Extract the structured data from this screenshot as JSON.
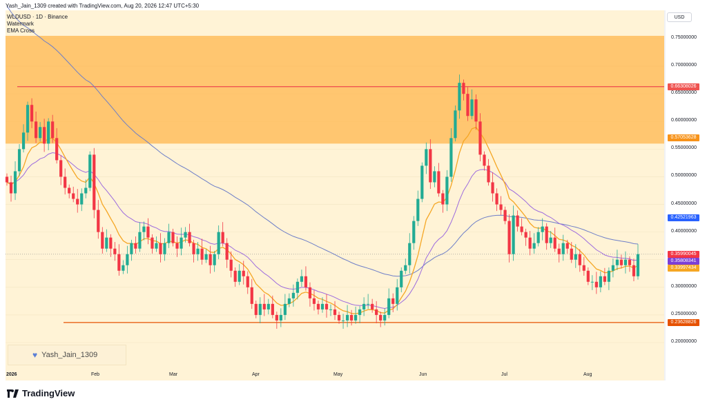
{
  "header": "Yash_Jain_1309 created with TradingView.com, Aug 20, 2026 12:47 UTC+5:30",
  "legend": [
    "WLDUSD · 1D · Binance",
    "Watermark",
    "EMA Cross"
  ],
  "watermark": {
    "text": "Yash_Jain_1309",
    "icon": "heart-icon",
    "icon_color": "#5b7fd6"
  },
  "currency_button": "USD",
  "footer_logo": "TradingView",
  "colors": {
    "up": "#22ab94",
    "down": "#f23645",
    "ema_fast": "#f5a623",
    "ema_slow": "#9c6ade",
    "ema_long": "#6d7ec8",
    "zone": "#ffb74d",
    "background": "#fff3d6",
    "resistance": "#ef5350",
    "support": "#e65100"
  },
  "price_labels": [
    {
      "text": "0.66308026",
      "color": "#ef5350",
      "value": 0.66308026
    },
    {
      "text": "0.57053628",
      "color": "#f7931a",
      "value": 0.57053628
    },
    {
      "text": "0.42521963",
      "color": "#2962ff",
      "value": 0.42521963
    },
    {
      "text": "0.35990045",
      "color": "#f23645",
      "value": 0.35990045
    },
    {
      "text": "0.35808341",
      "color": "#7b3fd6",
      "value": 0.35808341
    },
    {
      "text": "0.33997434",
      "color": "#f5a623",
      "value": 0.33997434
    },
    {
      "text": "0.23628826",
      "color": "#e65100",
      "value": 0.23628826
    }
  ],
  "chart_data": {
    "type": "candlestick",
    "symbol": "WLDUSD",
    "timeframe": "1D",
    "exchange": "Binance",
    "y_ticks": [
      "0.75000000",
      "0.70000000",
      "0.65000000",
      "0.60000000",
      "0.55000000",
      "0.50000000",
      "0.45000000",
      "0.40000000",
      "0.35000000",
      "0.30000000",
      "0.25000000",
      "0.20000000"
    ],
    "x_ticks": [
      "2026",
      "Feb",
      "Mar",
      "Apr",
      "May",
      "Jun",
      "Jul",
      "Aug"
    ],
    "ylim": [
      0.18,
      0.77
    ],
    "zone": {
      "low": 0.56,
      "high": 0.755
    },
    "resistance": 0.66308026,
    "support": 0.23628826,
    "last_price": 0.35990045,
    "closes": [
      0.49,
      0.47,
      0.51,
      0.55,
      0.58,
      0.63,
      0.6,
      0.57,
      0.59,
      0.56,
      0.6,
      0.57,
      0.53,
      0.5,
      0.48,
      0.47,
      0.46,
      0.45,
      0.47,
      0.48,
      0.54,
      0.44,
      0.4,
      0.37,
      0.39,
      0.37,
      0.36,
      0.33,
      0.34,
      0.36,
      0.38,
      0.37,
      0.4,
      0.41,
      0.39,
      0.37,
      0.38,
      0.36,
      0.38,
      0.4,
      0.38,
      0.37,
      0.39,
      0.4,
      0.38,
      0.36,
      0.37,
      0.35,
      0.36,
      0.34,
      0.36,
      0.4,
      0.38,
      0.35,
      0.33,
      0.31,
      0.33,
      0.32,
      0.3,
      0.27,
      0.25,
      0.27,
      0.26,
      0.27,
      0.25,
      0.24,
      0.25,
      0.27,
      0.28,
      0.29,
      0.31,
      0.32,
      0.3,
      0.28,
      0.27,
      0.26,
      0.27,
      0.26,
      0.26,
      0.25,
      0.24,
      0.24,
      0.25,
      0.24,
      0.25,
      0.26,
      0.27,
      0.27,
      0.26,
      0.25,
      0.24,
      0.25,
      0.28,
      0.27,
      0.3,
      0.33,
      0.34,
      0.38,
      0.42,
      0.46,
      0.52,
      0.55,
      0.49,
      0.51,
      0.47,
      0.45,
      0.5,
      0.57,
      0.62,
      0.67,
      0.65,
      0.61,
      0.64,
      0.6,
      0.54,
      0.52,
      0.49,
      0.47,
      0.45,
      0.44,
      0.42,
      0.36,
      0.43,
      0.41,
      0.4,
      0.39,
      0.37,
      0.38,
      0.4,
      0.41,
      0.38,
      0.39,
      0.37,
      0.36,
      0.38,
      0.37,
      0.35,
      0.36,
      0.34,
      0.33,
      0.31,
      0.31,
      0.3,
      0.32,
      0.31,
      0.33,
      0.34,
      0.35,
      0.34,
      0.35,
      0.34,
      0.32,
      0.36
    ],
    "ema_fast_label": "EMA Cross fast",
    "ema_slow_label": "EMA Cross slow"
  }
}
